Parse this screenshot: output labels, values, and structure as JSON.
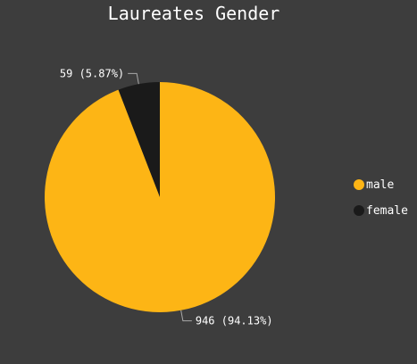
{
  "chart_data": {
    "type": "pie",
    "title": "Laureates Gender",
    "slices": [
      {
        "label": "male",
        "value": 946,
        "percent": 94.13,
        "color": "#fdb515",
        "data_label": "946 (94.13%)"
      },
      {
        "label": "female",
        "value": 59,
        "percent": 5.87,
        "color": "#1a1a1a",
        "data_label": "59 (5.87%)"
      }
    ],
    "legend": {
      "placement": "right"
    },
    "background": "#3d3d3d"
  }
}
